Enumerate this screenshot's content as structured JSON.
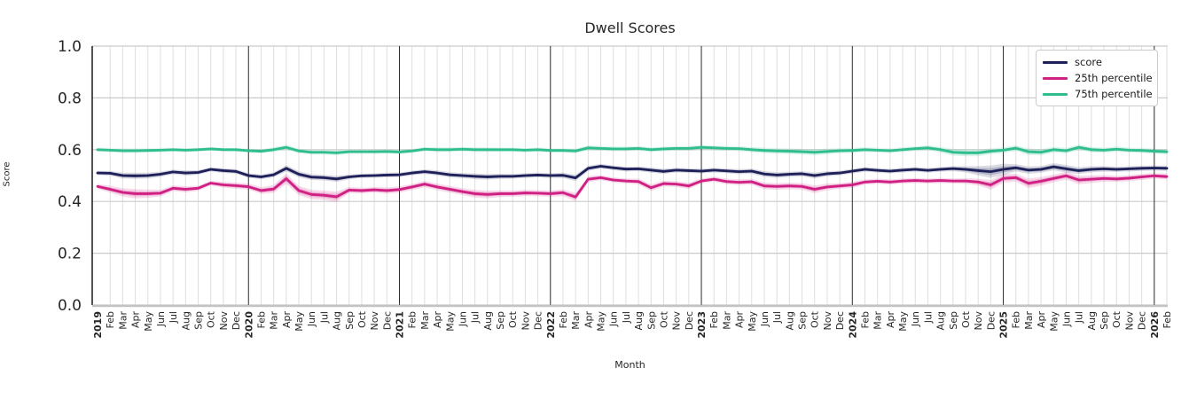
{
  "chart_data": {
    "type": "line",
    "title": "Dwell Scores",
    "xlabel": "Month",
    "ylabel": "Score",
    "ylim": [
      0.0,
      1.0
    ],
    "yticks": [
      0.0,
      0.2,
      0.4,
      0.6,
      0.8,
      1.0
    ],
    "grid": true,
    "legend_position": "upper right",
    "x_labels": [
      "2019",
      "Feb",
      "Mar",
      "Apr",
      "May",
      "Jun",
      "Jul",
      "Aug",
      "Sep",
      "Oct",
      "Nov",
      "Dec",
      "2020",
      "Feb",
      "Mar",
      "Apr",
      "May",
      "Jun",
      "Jul",
      "Aug",
      "Sep",
      "Oct",
      "Nov",
      "Dec",
      "2021",
      "Feb",
      "Mar",
      "Apr",
      "May",
      "Jun",
      "Jul",
      "Aug",
      "Sep",
      "Oct",
      "Nov",
      "Dec",
      "2022",
      "Feb",
      "Mar",
      "Apr",
      "May",
      "Jun",
      "Jul",
      "Aug",
      "Sep",
      "Oct",
      "Nov",
      "Dec",
      "2023",
      "Feb",
      "Mar",
      "Apr",
      "May",
      "Jun",
      "Jul",
      "Aug",
      "Sep",
      "Oct",
      "Nov",
      "Dec",
      "2024",
      "Feb",
      "Mar",
      "Apr",
      "May",
      "Jun",
      "Jul",
      "Aug",
      "Sep",
      "Oct",
      "Nov",
      "Dec",
      "2025",
      "Feb",
      "Mar",
      "Apr",
      "May",
      "Jun",
      "Jul",
      "Aug",
      "Sep",
      "Oct",
      "Nov",
      "Dec",
      "2026",
      "Feb"
    ],
    "series": [
      {
        "name": "score",
        "color": "#1e2059",
        "values": [
          0.51,
          0.509,
          0.5,
          0.499,
          0.5,
          0.505,
          0.514,
          0.51,
          0.512,
          0.524,
          0.519,
          0.516,
          0.5,
          0.495,
          0.503,
          0.528,
          0.505,
          0.494,
          0.492,
          0.487,
          0.495,
          0.499,
          0.5,
          0.502,
          0.503,
          0.51,
          0.515,
          0.51,
          0.503,
          0.5,
          0.497,
          0.495,
          0.497,
          0.497,
          0.5,
          0.502,
          0.5,
          0.501,
          0.491,
          0.528,
          0.536,
          0.53,
          0.525,
          0.526,
          0.521,
          0.516,
          0.521,
          0.519,
          0.517,
          0.521,
          0.518,
          0.515,
          0.517,
          0.506,
          0.502,
          0.505,
          0.507,
          0.5,
          0.507,
          0.51,
          0.517,
          0.524,
          0.52,
          0.517,
          0.521,
          0.524,
          0.52,
          0.524,
          0.527,
          0.524,
          0.519,
          0.515,
          0.524,
          0.53,
          0.521,
          0.524,
          0.534,
          0.526,
          0.519,
          0.524,
          0.526,
          0.524,
          0.526,
          0.528,
          0.529,
          0.528
        ],
        "band_halfwidth": [
          0.008,
          0.009,
          0.011,
          0.012,
          0.011,
          0.01,
          0.009,
          0.01,
          0.009,
          0.008,
          0.009,
          0.009,
          0.009,
          0.009,
          0.01,
          0.012,
          0.012,
          0.011,
          0.011,
          0.012,
          0.009,
          0.008,
          0.008,
          0.009,
          0.009,
          0.009,
          0.009,
          0.01,
          0.01,
          0.01,
          0.011,
          0.011,
          0.01,
          0.009,
          0.009,
          0.009,
          0.009,
          0.01,
          0.012,
          0.01,
          0.009,
          0.009,
          0.009,
          0.009,
          0.01,
          0.01,
          0.009,
          0.009,
          0.009,
          0.009,
          0.009,
          0.01,
          0.01,
          0.011,
          0.011,
          0.01,
          0.01,
          0.011,
          0.01,
          0.009,
          0.009,
          0.009,
          0.009,
          0.009,
          0.009,
          0.009,
          0.009,
          0.009,
          0.01,
          0.012,
          0.018,
          0.024,
          0.022,
          0.014,
          0.014,
          0.013,
          0.014,
          0.015,
          0.013,
          0.012,
          0.011,
          0.01,
          0.01,
          0.01,
          0.01,
          0.01
        ]
      },
      {
        "name": "25th percentile",
        "color": "#d02083",
        "values": [
          0.458,
          0.447,
          0.435,
          0.43,
          0.43,
          0.432,
          0.451,
          0.447,
          0.451,
          0.471,
          0.464,
          0.461,
          0.457,
          0.442,
          0.448,
          0.488,
          0.442,
          0.427,
          0.424,
          0.418,
          0.444,
          0.442,
          0.445,
          0.442,
          0.446,
          0.456,
          0.467,
          0.456,
          0.447,
          0.438,
          0.43,
          0.427,
          0.43,
          0.43,
          0.433,
          0.432,
          0.43,
          0.434,
          0.417,
          0.486,
          0.492,
          0.483,
          0.479,
          0.477,
          0.453,
          0.469,
          0.467,
          0.46,
          0.479,
          0.486,
          0.477,
          0.474,
          0.476,
          0.46,
          0.458,
          0.46,
          0.458,
          0.447,
          0.456,
          0.46,
          0.464,
          0.475,
          0.478,
          0.475,
          0.479,
          0.481,
          0.479,
          0.481,
          0.479,
          0.479,
          0.475,
          0.464,
          0.489,
          0.492,
          0.47,
          0.478,
          0.489,
          0.499,
          0.483,
          0.486,
          0.489,
          0.487,
          0.49,
          0.495,
          0.499,
          0.496
        ],
        "band_halfwidth": [
          0.01,
          0.013,
          0.016,
          0.018,
          0.016,
          0.013,
          0.011,
          0.012,
          0.01,
          0.009,
          0.011,
          0.012,
          0.012,
          0.013,
          0.015,
          0.02,
          0.018,
          0.018,
          0.018,
          0.02,
          0.012,
          0.011,
          0.011,
          0.012,
          0.012,
          0.012,
          0.012,
          0.013,
          0.013,
          0.013,
          0.015,
          0.015,
          0.013,
          0.012,
          0.012,
          0.012,
          0.012,
          0.013,
          0.016,
          0.012,
          0.01,
          0.01,
          0.01,
          0.011,
          0.013,
          0.011,
          0.011,
          0.012,
          0.01,
          0.01,
          0.011,
          0.011,
          0.011,
          0.013,
          0.013,
          0.013,
          0.013,
          0.015,
          0.013,
          0.011,
          0.012,
          0.01,
          0.01,
          0.01,
          0.01,
          0.01,
          0.01,
          0.01,
          0.01,
          0.011,
          0.013,
          0.019,
          0.017,
          0.015,
          0.019,
          0.017,
          0.015,
          0.015,
          0.017,
          0.015,
          0.013,
          0.012,
          0.012,
          0.012,
          0.011,
          0.012
        ]
      },
      {
        "name": "75th percentile",
        "color": "#2ebd8e",
        "values": [
          0.6,
          0.598,
          0.596,
          0.596,
          0.597,
          0.598,
          0.6,
          0.598,
          0.6,
          0.603,
          0.6,
          0.6,
          0.596,
          0.594,
          0.6,
          0.609,
          0.595,
          0.59,
          0.59,
          0.588,
          0.592,
          0.592,
          0.592,
          0.593,
          0.591,
          0.595,
          0.602,
          0.6,
          0.6,
          0.602,
          0.6,
          0.6,
          0.6,
          0.6,
          0.598,
          0.6,
          0.597,
          0.597,
          0.595,
          0.607,
          0.605,
          0.603,
          0.603,
          0.605,
          0.6,
          0.603,
          0.605,
          0.605,
          0.609,
          0.607,
          0.605,
          0.604,
          0.6,
          0.597,
          0.595,
          0.594,
          0.592,
          0.59,
          0.593,
          0.596,
          0.597,
          0.6,
          0.598,
          0.596,
          0.6,
          0.604,
          0.607,
          0.6,
          0.59,
          0.588,
          0.588,
          0.594,
          0.598,
          0.606,
          0.592,
          0.59,
          0.6,
          0.596,
          0.609,
          0.6,
          0.598,
          0.602,
          0.598,
          0.597,
          0.594,
          0.592
        ],
        "band_halfwidth": [
          0.007,
          0.008,
          0.009,
          0.009,
          0.008,
          0.008,
          0.007,
          0.008,
          0.007,
          0.007,
          0.007,
          0.007,
          0.008,
          0.008,
          0.009,
          0.01,
          0.009,
          0.009,
          0.009,
          0.01,
          0.008,
          0.008,
          0.008,
          0.008,
          0.008,
          0.008,
          0.008,
          0.009,
          0.009,
          0.009,
          0.009,
          0.009,
          0.008,
          0.008,
          0.008,
          0.008,
          0.008,
          0.008,
          0.009,
          0.01,
          0.009,
          0.009,
          0.009,
          0.009,
          0.009,
          0.009,
          0.009,
          0.009,
          0.009,
          0.009,
          0.009,
          0.01,
          0.01,
          0.011,
          0.011,
          0.011,
          0.011,
          0.012,
          0.011,
          0.01,
          0.01,
          0.009,
          0.009,
          0.009,
          0.009,
          0.009,
          0.01,
          0.011,
          0.013,
          0.014,
          0.013,
          0.011,
          0.011,
          0.011,
          0.013,
          0.012,
          0.011,
          0.011,
          0.011,
          0.011,
          0.01,
          0.01,
          0.01,
          0.01,
          0.01,
          0.01
        ]
      }
    ],
    "style": {
      "minor_grid_color": "#dedede",
      "major_grid_color": "#cbcbcb",
      "year_line_color": "#2b2b2b",
      "left_spine_color": "#262626",
      "bottom_spine_color": "#c3c3c3",
      "text_color": "#262626"
    }
  }
}
